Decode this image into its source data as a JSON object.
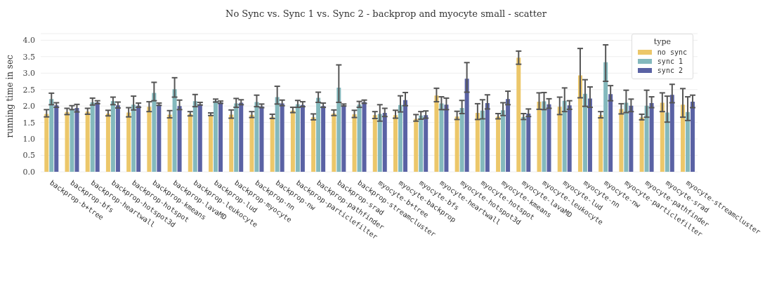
{
  "chart_data": {
    "type": "bar",
    "title": "No Sync vs. Sync 1 vs. Sync 2 - backprop and myocyte small - scatter",
    "ylabel": "running time in sec",
    "legend_title": "type",
    "categories": [
      "backprop-b+tree",
      "backprop-bfs",
      "backprop-heartwall",
      "backprop-hotspot3d",
      "backprop-hotspot",
      "backprop-kmeans",
      "backprop-lavaMD",
      "backprop-leukocyte",
      "backprop-lud",
      "backprop-myocyte",
      "backprop-nn",
      "backprop-nw",
      "backprop-particlefilter",
      "backprop-pathfinder",
      "backprop-srad",
      "backprop-streamcluster",
      "myocyte-b+tree",
      "myocyte-backprop",
      "myocyte-bfs",
      "myocyte-heartwall",
      "myocyte-hotspot3d",
      "myocyte-hotspot",
      "myocyte-kmeans",
      "myocyte-lavaMD",
      "myocyte-leukocyte",
      "myocyte-lud",
      "myocyte-nn",
      "myocyte-nw",
      "myocyte-particlefilter",
      "myocyte-pathfinder",
      "myocyte-srad",
      "myocyte-streamcluster"
    ],
    "series": [
      {
        "name": "no sync",
        "color": "#ecc76a",
        "values": [
          1.76,
          1.82,
          1.83,
          1.77,
          1.8,
          1.98,
          1.74,
          1.76,
          1.73,
          1.74,
          1.73,
          1.67,
          1.86,
          1.66,
          1.77,
          1.75,
          1.72,
          1.72,
          1.61,
          2.32,
          1.68,
          1.79,
          1.68,
          3.47,
          2.13,
          1.98,
          2.93,
          1.72,
          1.91,
          1.65,
          2.1,
          2.04
        ],
        "errors": [
          [
            1.67,
            1.89
          ],
          [
            1.74,
            1.93
          ],
          [
            1.75,
            1.93
          ],
          [
            1.7,
            1.87
          ],
          [
            1.67,
            1.95
          ],
          [
            1.83,
            2.13
          ],
          [
            1.64,
            1.86
          ],
          [
            1.7,
            1.83
          ],
          [
            1.71,
            1.79
          ],
          [
            1.63,
            1.88
          ],
          [
            1.65,
            1.83
          ],
          [
            1.62,
            1.75
          ],
          [
            1.8,
            1.96
          ],
          [
            1.58,
            1.76
          ],
          [
            1.71,
            1.88
          ],
          [
            1.65,
            1.87
          ],
          [
            1.62,
            1.83
          ],
          [
            1.63,
            1.87
          ],
          [
            1.54,
            1.74
          ],
          [
            2.13,
            2.54
          ],
          [
            1.59,
            1.84
          ],
          [
            1.59,
            2.07
          ],
          [
            1.61,
            1.77
          ],
          [
            3.27,
            3.67
          ],
          [
            1.9,
            2.4
          ],
          [
            1.74,
            2.27
          ],
          [
            2.25,
            3.75
          ],
          [
            1.64,
            1.83
          ],
          [
            1.76,
            2.07
          ],
          [
            1.58,
            1.75
          ],
          [
            1.83,
            2.4
          ],
          [
            1.66,
            2.53
          ]
        ]
      },
      {
        "name": "sync 1",
        "color": "#84b9bd",
        "values": [
          2.21,
          1.91,
          2.11,
          2.15,
          2.04,
          2.4,
          2.51,
          2.15,
          2.16,
          2.08,
          2.12,
          2.27,
          2.05,
          2.25,
          2.56,
          2.04,
          1.76,
          2.03,
          1.71,
          2.08,
          1.94,
          1.86,
          1.87,
          1.67,
          2.14,
          2.16,
          2.37,
          3.33,
          2.1,
          2.01,
          1.8,
          1.82
        ],
        "errors": [
          [
            2.04,
            2.39
          ],
          [
            1.89,
            2.01
          ],
          [
            2.03,
            2.24
          ],
          [
            2.04,
            2.27
          ],
          [
            1.88,
            2.3
          ],
          [
            2.16,
            2.72
          ],
          [
            2.27,
            2.86
          ],
          [
            1.98,
            2.35
          ],
          [
            2.12,
            2.21
          ],
          [
            1.96,
            2.23
          ],
          [
            1.98,
            2.33
          ],
          [
            2.06,
            2.6
          ],
          [
            1.96,
            2.17
          ],
          [
            2.11,
            2.42
          ],
          [
            2.11,
            3.25
          ],
          [
            1.96,
            2.14
          ],
          [
            1.54,
            2.04
          ],
          [
            1.82,
            2.31
          ],
          [
            1.6,
            1.83
          ],
          [
            1.89,
            2.28
          ],
          [
            1.77,
            2.17
          ],
          [
            1.61,
            2.19
          ],
          [
            1.71,
            2.1
          ],
          [
            1.59,
            1.77
          ],
          [
            1.89,
            2.41
          ],
          [
            1.83,
            2.55
          ],
          [
            1.99,
            2.8
          ],
          [
            2.75,
            3.86
          ],
          [
            1.8,
            2.48
          ],
          [
            1.66,
            2.48
          ],
          [
            1.51,
            2.3
          ],
          [
            1.56,
            2.28
          ]
        ]
      },
      {
        "name": "sync 2",
        "color": "#5a62a4",
        "values": [
          2.02,
          1.94,
          2.11,
          2.02,
          2.01,
          2.04,
          2.0,
          2.05,
          2.11,
          2.1,
          1.99,
          2.08,
          2.03,
          2.0,
          2.02,
          2.12,
          1.79,
          2.18,
          1.72,
          2.04,
          2.83,
          2.09,
          2.21,
          1.77,
          2.05,
          2.02,
          2.23,
          2.36,
          2.01,
          2.09,
          2.34,
          2.13
        ],
        "errors": [
          [
            1.96,
            2.1
          ],
          [
            1.82,
            2.05
          ],
          [
            2.07,
            2.16
          ],
          [
            1.94,
            2.12
          ],
          [
            1.96,
            2.09
          ],
          [
            2.02,
            2.09
          ],
          [
            1.89,
            2.18
          ],
          [
            2.03,
            2.11
          ],
          [
            2.08,
            2.15
          ],
          [
            2.04,
            2.19
          ],
          [
            1.95,
            2.06
          ],
          [
            2.01,
            2.18
          ],
          [
            1.98,
            2.13
          ],
          [
            1.96,
            2.09
          ],
          [
            2.0,
            2.06
          ],
          [
            2.08,
            2.18
          ],
          [
            1.68,
            1.93
          ],
          [
            2.01,
            2.41
          ],
          [
            1.63,
            1.85
          ],
          [
            1.89,
            2.24
          ],
          [
            2.42,
            3.32
          ],
          [
            1.91,
            2.34
          ],
          [
            2.04,
            2.45
          ],
          [
            1.68,
            1.91
          ],
          [
            1.93,
            2.22
          ],
          [
            1.9,
            2.16
          ],
          [
            1.96,
            2.58
          ],
          [
            2.16,
            2.62
          ],
          [
            1.83,
            2.21
          ],
          [
            1.95,
            2.28
          ],
          [
            2.1,
            2.66
          ],
          [
            1.95,
            2.33
          ]
        ]
      }
    ],
    "ylim": [
      0,
      4.2
    ],
    "yticks": [
      {
        "value": 0,
        "label": "0.0"
      },
      {
        "value": 0.5,
        "label": "0.5"
      },
      {
        "value": 1,
        "label": "1.0"
      },
      {
        "value": 1.5,
        "label": "1.5"
      },
      {
        "value": 2,
        "label": "2.0"
      },
      {
        "value": 2.5,
        "label": "2.5"
      },
      {
        "value": 3,
        "label": "3.0"
      },
      {
        "value": 3.5,
        "label": "3.5"
      },
      {
        "value": 4,
        "label": "4.0"
      }
    ],
    "grid": "y",
    "legend": "top right"
  }
}
